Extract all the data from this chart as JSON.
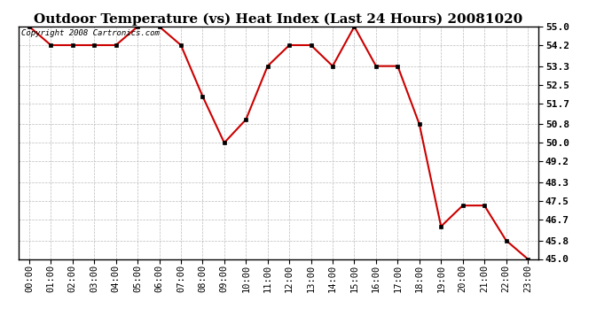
{
  "title": "Outdoor Temperature (vs) Heat Index (Last 24 Hours) 20081020",
  "copyright_text": "Copyright 2008 Cartronics.com",
  "x_labels": [
    "00:00",
    "01:00",
    "02:00",
    "03:00",
    "04:00",
    "05:00",
    "06:00",
    "07:00",
    "08:00",
    "09:00",
    "10:00",
    "11:00",
    "12:00",
    "13:00",
    "14:00",
    "15:00",
    "16:00",
    "17:00",
    "18:00",
    "19:00",
    "20:00",
    "21:00",
    "22:00",
    "23:00"
  ],
  "y_values": [
    55.0,
    54.2,
    54.2,
    54.2,
    54.2,
    55.0,
    55.0,
    54.2,
    52.0,
    50.0,
    51.0,
    53.3,
    54.2,
    54.2,
    53.3,
    55.0,
    53.3,
    53.3,
    50.8,
    46.4,
    47.3,
    47.3,
    45.8,
    45.0
  ],
  "ylim_min": 45.0,
  "ylim_max": 55.0,
  "yticks": [
    45.0,
    45.8,
    46.7,
    47.5,
    48.3,
    49.2,
    50.0,
    50.8,
    51.7,
    52.5,
    53.3,
    54.2,
    55.0
  ],
  "line_color": "#cc0000",
  "marker_color": "#000000",
  "background_color": "#ffffff",
  "grid_color": "#bbbbbb",
  "title_fontsize": 11,
  "copyright_fontsize": 6.5,
  "tick_fontsize": 7.5,
  "ytick_fontsize": 8
}
